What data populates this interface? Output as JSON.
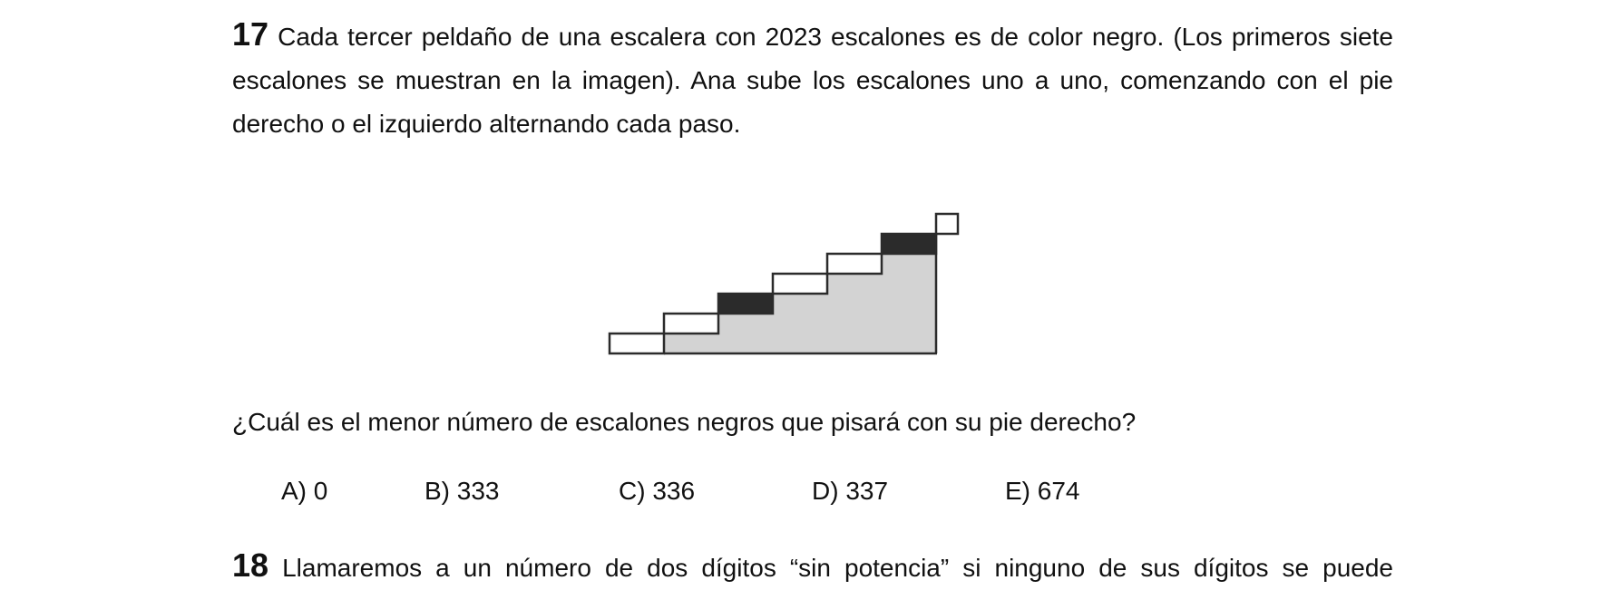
{
  "problem17": {
    "number": "17",
    "text": " Cada tercer peldaño de una escalera con 2023 escalones es de color negro. (Los primeros siete escalones se muestran en la imagen). Ana sube los escalones uno a uno, comenzando con el pie derecho o el izquierdo alternando cada paso.",
    "question": "¿Cuál es el menor número de escalones negros que pisará con su pie derecho?",
    "options": [
      {
        "label": "A)   0"
      },
      {
        "label": "B) 333"
      },
      {
        "label": "C) 336"
      },
      {
        "label": "D) 337"
      },
      {
        "label": "E) 674"
      }
    ]
  },
  "figure": {
    "step_colors": [
      "white",
      "white",
      "black",
      "white",
      "white",
      "black",
      "white"
    ],
    "colors": {
      "stair_fill": "#d3d3d3",
      "black_step": "#2b2b2b",
      "outline": "#2b2b2b",
      "white_step": "#ffffff"
    }
  },
  "problem18": {
    "number": "18",
    "text": " Llamaremos a un número de dos dígitos “sin potencia” si ninguno de sus dígitos se puede"
  }
}
